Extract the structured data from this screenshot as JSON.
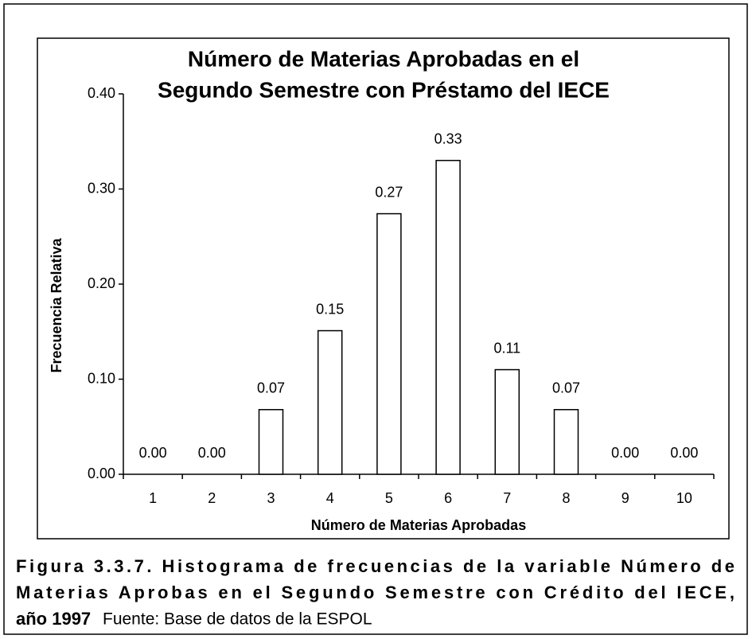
{
  "chart_data": {
    "type": "bar",
    "title": [
      "Número de Materias Aprobadas en el",
      "Segundo Semestre con Préstamo del IECE"
    ],
    "x_label": "Número de Materias Aprobadas",
    "y_label": "Frecuencia Relativa",
    "categories": [
      "1",
      "2",
      "3",
      "4",
      "5",
      "6",
      "7",
      "8",
      "9",
      "10"
    ],
    "values": [
      0,
      0,
      0.068,
      0.151,
      0.274,
      0.33,
      0.11,
      0.068,
      0,
      0
    ],
    "value_labels": [
      "0.00",
      "0.00",
      "0.07",
      "0.15",
      "0.27",
      "0.33",
      "0.11",
      "0.07",
      "0.00",
      "0.00"
    ],
    "color": "#ffffff",
    "ylim": [
      0,
      0.4
    ],
    "yticks": [
      {
        "value": 0,
        "label": "0.00"
      },
      {
        "value": 0.1,
        "label": "0.10"
      },
      {
        "value": 0.2,
        "label": "0.20"
      },
      {
        "value": 0.3,
        "label": "0.30"
      },
      {
        "value": 0.4,
        "label": "0.40"
      }
    ],
    "grid": false
  },
  "caption": [
    "Figura 3.3.7. Histograma de frecuencias de la variable Número de",
    "Materias Aprobas en el Segundo Semestre con Crédito del IECE,",
    "año 1997"
  ],
  "source": "Fuente: Base de datos de la ESPOL"
}
